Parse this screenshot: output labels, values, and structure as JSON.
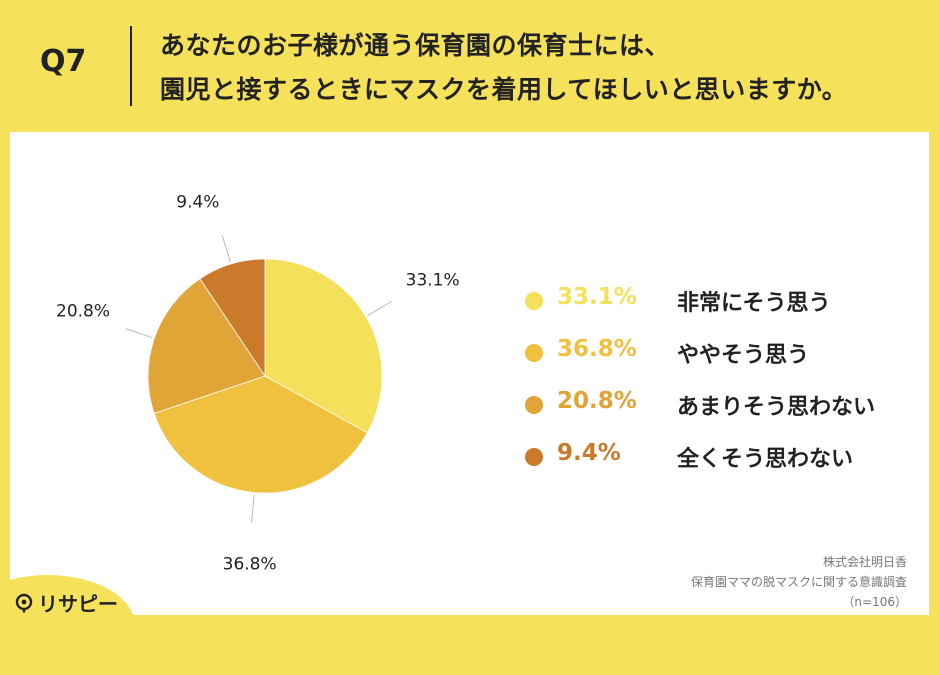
{
  "question": {
    "number": "Q7",
    "line1": "あなたのお子様が通う保育園の保育士には、",
    "line2": "園児と接するときにマスクを着用してほしいと思いますか。"
  },
  "chart_data": {
    "type": "pie",
    "series_name": "保育園ママの脱マスクに関する意識調査",
    "slices": [
      {
        "label": "非常にそう思う",
        "value": 33.1,
        "display": "33.1%",
        "color": "#f4e05a"
      },
      {
        "label": "ややそう思う",
        "value": 36.8,
        "display": "36.8%",
        "color": "#efc13f"
      },
      {
        "label": "あまりそう思わない",
        "value": 20.8,
        "display": "20.8%",
        "color": "#e0a437"
      },
      {
        "label": "全くそう思わない",
        "value": 9.4,
        "display": "9.4%",
        "color": "#cb7a2c"
      }
    ],
    "legend_position": "right"
  },
  "source": {
    "company": "株式会社明日香",
    "survey": "保育園ママの脱マスクに関する意識調査",
    "sample": "（n=106）"
  },
  "logo": {
    "text": "リサピー"
  }
}
